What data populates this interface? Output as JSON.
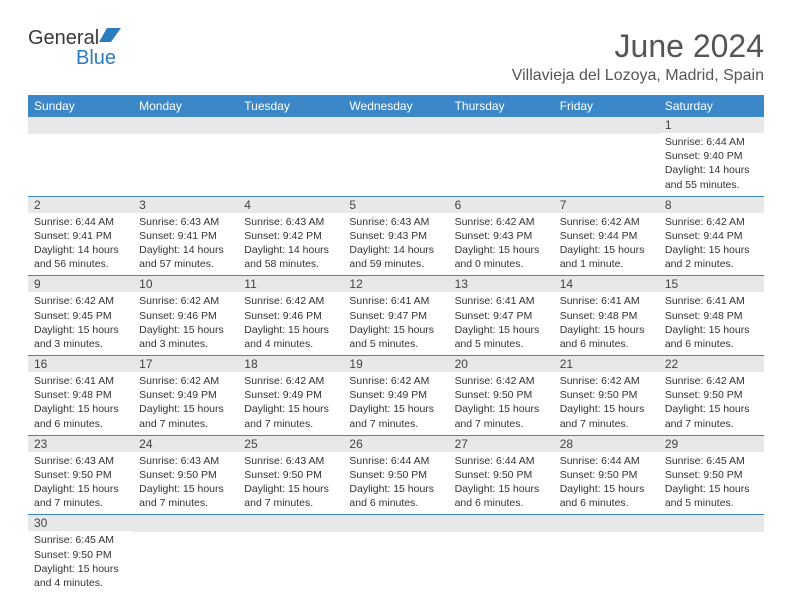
{
  "logo": {
    "text1": "General",
    "text2": "Blue"
  },
  "title": "June 2024",
  "location": "Villavieja del Lozoya, Madrid, Spain",
  "colors": {
    "header_bg": "#3b87c8",
    "header_fg": "#ffffff",
    "row_border": "#3b87c8",
    "daynum_bg": "#e8e8e8",
    "text": "#333333",
    "logo_blue": "#2b7bbf"
  },
  "weekdays": [
    "Sunday",
    "Monday",
    "Tuesday",
    "Wednesday",
    "Thursday",
    "Friday",
    "Saturday"
  ],
  "weeks": [
    [
      null,
      null,
      null,
      null,
      null,
      null,
      {
        "n": "1",
        "sr": "Sunrise: 6:44 AM",
        "ss": "Sunset: 9:40 PM",
        "dl": "Daylight: 14 hours and 55 minutes."
      }
    ],
    [
      {
        "n": "2",
        "sr": "Sunrise: 6:44 AM",
        "ss": "Sunset: 9:41 PM",
        "dl": "Daylight: 14 hours and 56 minutes."
      },
      {
        "n": "3",
        "sr": "Sunrise: 6:43 AM",
        "ss": "Sunset: 9:41 PM",
        "dl": "Daylight: 14 hours and 57 minutes."
      },
      {
        "n": "4",
        "sr": "Sunrise: 6:43 AM",
        "ss": "Sunset: 9:42 PM",
        "dl": "Daylight: 14 hours and 58 minutes."
      },
      {
        "n": "5",
        "sr": "Sunrise: 6:43 AM",
        "ss": "Sunset: 9:43 PM",
        "dl": "Daylight: 14 hours and 59 minutes."
      },
      {
        "n": "6",
        "sr": "Sunrise: 6:42 AM",
        "ss": "Sunset: 9:43 PM",
        "dl": "Daylight: 15 hours and 0 minutes."
      },
      {
        "n": "7",
        "sr": "Sunrise: 6:42 AM",
        "ss": "Sunset: 9:44 PM",
        "dl": "Daylight: 15 hours and 1 minute."
      },
      {
        "n": "8",
        "sr": "Sunrise: 6:42 AM",
        "ss": "Sunset: 9:44 PM",
        "dl": "Daylight: 15 hours and 2 minutes."
      }
    ],
    [
      {
        "n": "9",
        "sr": "Sunrise: 6:42 AM",
        "ss": "Sunset: 9:45 PM",
        "dl": "Daylight: 15 hours and 3 minutes."
      },
      {
        "n": "10",
        "sr": "Sunrise: 6:42 AM",
        "ss": "Sunset: 9:46 PM",
        "dl": "Daylight: 15 hours and 3 minutes."
      },
      {
        "n": "11",
        "sr": "Sunrise: 6:42 AM",
        "ss": "Sunset: 9:46 PM",
        "dl": "Daylight: 15 hours and 4 minutes."
      },
      {
        "n": "12",
        "sr": "Sunrise: 6:41 AM",
        "ss": "Sunset: 9:47 PM",
        "dl": "Daylight: 15 hours and 5 minutes."
      },
      {
        "n": "13",
        "sr": "Sunrise: 6:41 AM",
        "ss": "Sunset: 9:47 PM",
        "dl": "Daylight: 15 hours and 5 minutes."
      },
      {
        "n": "14",
        "sr": "Sunrise: 6:41 AM",
        "ss": "Sunset: 9:48 PM",
        "dl": "Daylight: 15 hours and 6 minutes."
      },
      {
        "n": "15",
        "sr": "Sunrise: 6:41 AM",
        "ss": "Sunset: 9:48 PM",
        "dl": "Daylight: 15 hours and 6 minutes."
      }
    ],
    [
      {
        "n": "16",
        "sr": "Sunrise: 6:41 AM",
        "ss": "Sunset: 9:48 PM",
        "dl": "Daylight: 15 hours and 6 minutes."
      },
      {
        "n": "17",
        "sr": "Sunrise: 6:42 AM",
        "ss": "Sunset: 9:49 PM",
        "dl": "Daylight: 15 hours and 7 minutes."
      },
      {
        "n": "18",
        "sr": "Sunrise: 6:42 AM",
        "ss": "Sunset: 9:49 PM",
        "dl": "Daylight: 15 hours and 7 minutes."
      },
      {
        "n": "19",
        "sr": "Sunrise: 6:42 AM",
        "ss": "Sunset: 9:49 PM",
        "dl": "Daylight: 15 hours and 7 minutes."
      },
      {
        "n": "20",
        "sr": "Sunrise: 6:42 AM",
        "ss": "Sunset: 9:50 PM",
        "dl": "Daylight: 15 hours and 7 minutes."
      },
      {
        "n": "21",
        "sr": "Sunrise: 6:42 AM",
        "ss": "Sunset: 9:50 PM",
        "dl": "Daylight: 15 hours and 7 minutes."
      },
      {
        "n": "22",
        "sr": "Sunrise: 6:42 AM",
        "ss": "Sunset: 9:50 PM",
        "dl": "Daylight: 15 hours and 7 minutes."
      }
    ],
    [
      {
        "n": "23",
        "sr": "Sunrise: 6:43 AM",
        "ss": "Sunset: 9:50 PM",
        "dl": "Daylight: 15 hours and 7 minutes."
      },
      {
        "n": "24",
        "sr": "Sunrise: 6:43 AM",
        "ss": "Sunset: 9:50 PM",
        "dl": "Daylight: 15 hours and 7 minutes."
      },
      {
        "n": "25",
        "sr": "Sunrise: 6:43 AM",
        "ss": "Sunset: 9:50 PM",
        "dl": "Daylight: 15 hours and 7 minutes."
      },
      {
        "n": "26",
        "sr": "Sunrise: 6:44 AM",
        "ss": "Sunset: 9:50 PM",
        "dl": "Daylight: 15 hours and 6 minutes."
      },
      {
        "n": "27",
        "sr": "Sunrise: 6:44 AM",
        "ss": "Sunset: 9:50 PM",
        "dl": "Daylight: 15 hours and 6 minutes."
      },
      {
        "n": "28",
        "sr": "Sunrise: 6:44 AM",
        "ss": "Sunset: 9:50 PM",
        "dl": "Daylight: 15 hours and 6 minutes."
      },
      {
        "n": "29",
        "sr": "Sunrise: 6:45 AM",
        "ss": "Sunset: 9:50 PM",
        "dl": "Daylight: 15 hours and 5 minutes."
      }
    ],
    [
      {
        "n": "30",
        "sr": "Sunrise: 6:45 AM",
        "ss": "Sunset: 9:50 PM",
        "dl": "Daylight: 15 hours and 4 minutes."
      },
      null,
      null,
      null,
      null,
      null,
      null
    ]
  ]
}
